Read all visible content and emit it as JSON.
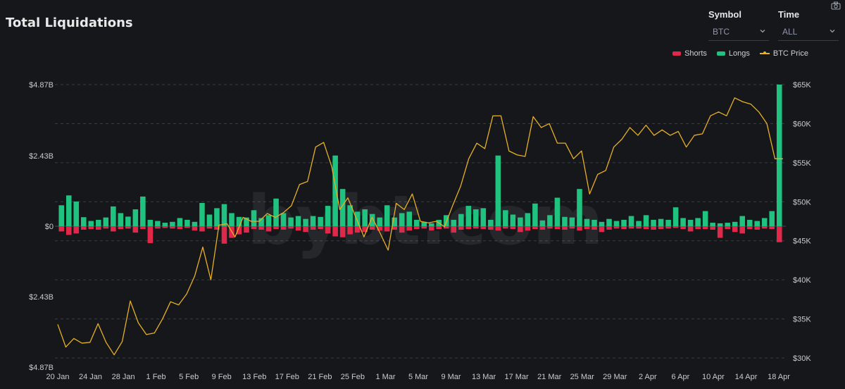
{
  "header": {
    "title": "Total Liquidations"
  },
  "controls": {
    "symbol": {
      "label": "Symbol",
      "value": "BTC"
    },
    "time": {
      "label": "Time",
      "value": "ALL"
    }
  },
  "icons": {
    "export": "camera-icon",
    "dropdown": "chevron-down-icon"
  },
  "watermark": "bybt.com",
  "chart_data": {
    "type": "bar",
    "legend": [
      "Shorts",
      "Longs",
      "BTC Price"
    ],
    "legend_position": "top-right",
    "colors": {
      "shorts": "#e0294a",
      "longs": "#1fc27f",
      "price": "#e6b027"
    },
    "grid": true,
    "left_axis": {
      "ticks": [
        "$4.87B",
        "$2.43B",
        "$0",
        "$2.43B",
        "$4.87B"
      ],
      "range": [
        -4.87,
        4.87
      ],
      "unit": "B"
    },
    "right_axis": {
      "ticks": [
        "$65K",
        "$60K",
        "$55K",
        "$50K",
        "$45K",
        "$40K",
        "$35K",
        "$30K"
      ],
      "range": [
        29.5,
        65
      ]
    },
    "x_ticks": [
      "20 Jan",
      "24 Jan",
      "28 Jan",
      "1 Feb",
      "5 Feb",
      "9 Feb",
      "13 Feb",
      "17 Feb",
      "21 Feb",
      "25 Feb",
      "1 Mar",
      "5 Mar",
      "9 Mar",
      "13 Mar",
      "17 Mar",
      "21 Mar",
      "25 Mar",
      "29 Mar",
      "2 Apr",
      "6 Apr",
      "10 Apr",
      "14 Apr",
      "18 Apr"
    ],
    "start_date": "20 Jan",
    "longs": [
      0.72,
      1.06,
      0.85,
      0.31,
      0.18,
      0.22,
      0.3,
      0.68,
      0.45,
      0.33,
      0.58,
      1.02,
      0.22,
      0.18,
      0.12,
      0.15,
      0.28,
      0.22,
      0.15,
      0.8,
      0.4,
      0.62,
      0.76,
      0.45,
      0.32,
      0.3,
      0.55,
      0.28,
      0.38,
      0.95,
      0.45,
      0.3,
      0.35,
      0.25,
      0.35,
      0.32,
      0.7,
      2.43,
      1.28,
      0.72,
      0.5,
      0.58,
      0.42,
      0.3,
      0.72,
      0.3,
      0.45,
      0.5,
      0.22,
      0.15,
      0.1,
      0.22,
      0.38,
      0.22,
      0.42,
      0.7,
      0.58,
      0.62,
      0.22,
      2.43,
      0.55,
      0.4,
      0.3,
      0.45,
      0.78,
      0.2,
      0.38,
      0.98,
      0.32,
      0.3,
      1.28,
      0.25,
      0.22,
      0.15,
      0.25,
      0.18,
      0.22,
      0.35,
      0.18,
      0.38,
      0.22,
      0.25,
      0.22,
      0.65,
      0.28,
      0.22,
      0.28,
      0.52,
      0.12,
      0.1,
      0.12,
      0.15,
      0.35,
      0.22,
      0.18,
      0.28,
      0.52,
      4.87
    ],
    "shorts": [
      -0.18,
      -0.3,
      -0.25,
      -0.12,
      -0.1,
      -0.12,
      -0.08,
      -0.18,
      -0.1,
      -0.08,
      -0.22,
      -0.1,
      -0.58,
      -0.08,
      -0.06,
      -0.08,
      -0.1,
      -0.06,
      -0.15,
      -0.18,
      -0.08,
      -0.12,
      -0.6,
      -0.4,
      -0.28,
      -0.22,
      -0.1,
      -0.12,
      -0.18,
      -0.1,
      -0.12,
      -0.08,
      -0.15,
      -0.2,
      -0.12,
      -0.1,
      -0.25,
      -0.35,
      -0.38,
      -0.28,
      -0.22,
      -0.2,
      -0.12,
      -0.15,
      -0.18,
      -0.12,
      -0.22,
      -0.15,
      -0.1,
      -0.08,
      -0.15,
      -0.1,
      -0.08,
      -0.22,
      -0.12,
      -0.1,
      -0.08,
      -0.1,
      -0.12,
      -0.15,
      -0.08,
      -0.1,
      -0.2,
      -0.15,
      -0.1,
      -0.12,
      -0.08,
      -0.1,
      -0.12,
      -0.08,
      -0.15,
      -0.1,
      -0.12,
      -0.2,
      -0.12,
      -0.08,
      -0.1,
      -0.08,
      -0.08,
      -0.1,
      -0.12,
      -0.1,
      -0.08,
      -0.06,
      -0.1,
      -0.18,
      -0.1,
      -0.1,
      -0.12,
      -0.4,
      -0.1,
      -0.2,
      -0.25,
      -0.1,
      -0.12,
      -0.08,
      -0.1,
      -0.55
    ],
    "price": [
      34.3,
      31.4,
      32.5,
      31.9,
      32.0,
      34.4,
      32.0,
      30.4,
      32.1,
      37.3,
      34.5,
      33.0,
      33.2,
      35.0,
      37.2,
      36.8,
      38.2,
      40.5,
      44.2,
      40.0,
      47.0,
      47.2,
      45.5,
      48.0,
      47.5,
      47.5,
      48.5,
      48.0,
      48.6,
      49.5,
      52.2,
      52.6,
      57.0,
      57.6,
      54.5,
      49.0,
      50.5,
      48.0,
      45.5,
      48.0,
      46.0,
      43.8,
      49.8,
      49.0,
      51.0,
      47.5,
      47.3,
      47.5,
      46.8,
      49.5,
      52.0,
      55.5,
      57.5,
      56.8,
      61.0,
      61.0,
      56.5,
      56.0,
      55.8,
      60.9,
      59.5,
      60.0,
      57.5,
      57.5,
      55.5,
      56.5,
      51.0,
      53.5,
      54.0,
      57.0,
      58.0,
      59.5,
      58.5,
      59.8,
      58.5,
      59.2,
      58.5,
      59.0,
      57.0,
      58.5,
      58.7,
      61.0,
      61.5,
      61.0,
      63.3,
      62.8,
      62.5,
      61.5,
      60.0,
      55.5,
      55.5
    ],
    "price_step": 0.53
  }
}
